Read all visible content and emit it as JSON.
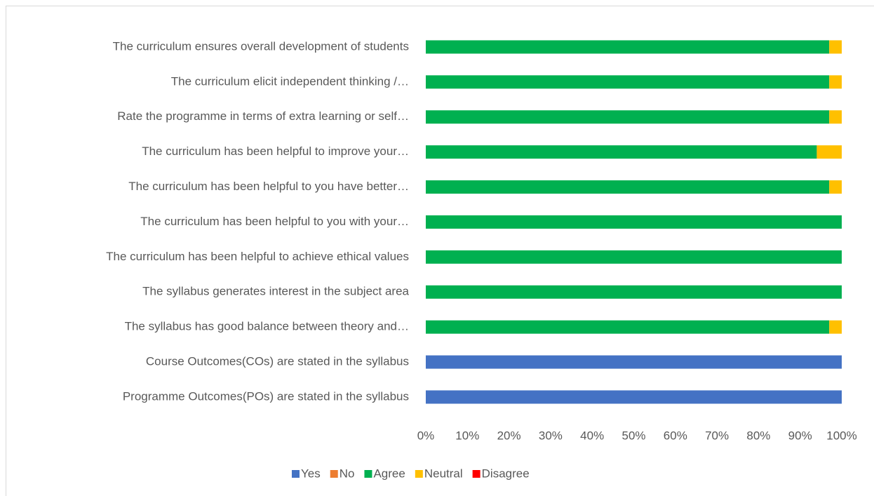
{
  "chart_data": {
    "type": "stacked-bar-horizontal",
    "categories": [
      "The curriculum ensures overall development of students",
      "The curriculum elicit independent thinking /…",
      "Rate the programme in terms of extra learning or self…",
      "The curriculum has been helpful to improve your…",
      "The curriculum has been helpful to you have better…",
      "The curriculum has been helpful to you with your…",
      "The curriculum has been helpful to achieve ethical values",
      "The syllabus generates interest in the subject area",
      "The syllabus has good balance between theory and…",
      "Course Outcomes(COs) are stated in the syllabus",
      "Programme Outcomes(POs) are stated in the syllabus"
    ],
    "series": [
      {
        "name": "Yes",
        "color": "#4472c4",
        "values": [
          0,
          0,
          0,
          0,
          0,
          0,
          0,
          0,
          0,
          100,
          100
        ]
      },
      {
        "name": "No",
        "color": "#ed7d31",
        "values": [
          0,
          0,
          0,
          0,
          0,
          0,
          0,
          0,
          0,
          0,
          0
        ]
      },
      {
        "name": "Agree",
        "color": "#00b050",
        "values": [
          97,
          97,
          97,
          94,
          97,
          100,
          100,
          100,
          97,
          0,
          0
        ]
      },
      {
        "name": "Neutral",
        "color": "#ffc000",
        "values": [
          3,
          3,
          3,
          6,
          3,
          0,
          0,
          0,
          3,
          0,
          0
        ]
      },
      {
        "name": "Disagree",
        "color": "#ff0000",
        "values": [
          0,
          0,
          0,
          0,
          0,
          0,
          0,
          0,
          0,
          0,
          0
        ]
      }
    ],
    "xlim": [
      0,
      100
    ],
    "xticks": [
      {
        "value": 0,
        "label": "0%"
      },
      {
        "value": 10,
        "label": "10%"
      },
      {
        "value": 20,
        "label": "20%"
      },
      {
        "value": 30,
        "label": "30%"
      },
      {
        "value": 40,
        "label": "40%"
      },
      {
        "value": 50,
        "label": "50%"
      },
      {
        "value": 60,
        "label": "60%"
      },
      {
        "value": 70,
        "label": "70%"
      },
      {
        "value": 80,
        "label": "80%"
      },
      {
        "value": 90,
        "label": "90%"
      },
      {
        "value": 100,
        "label": "100%"
      }
    ],
    "legend": "bottom"
  }
}
